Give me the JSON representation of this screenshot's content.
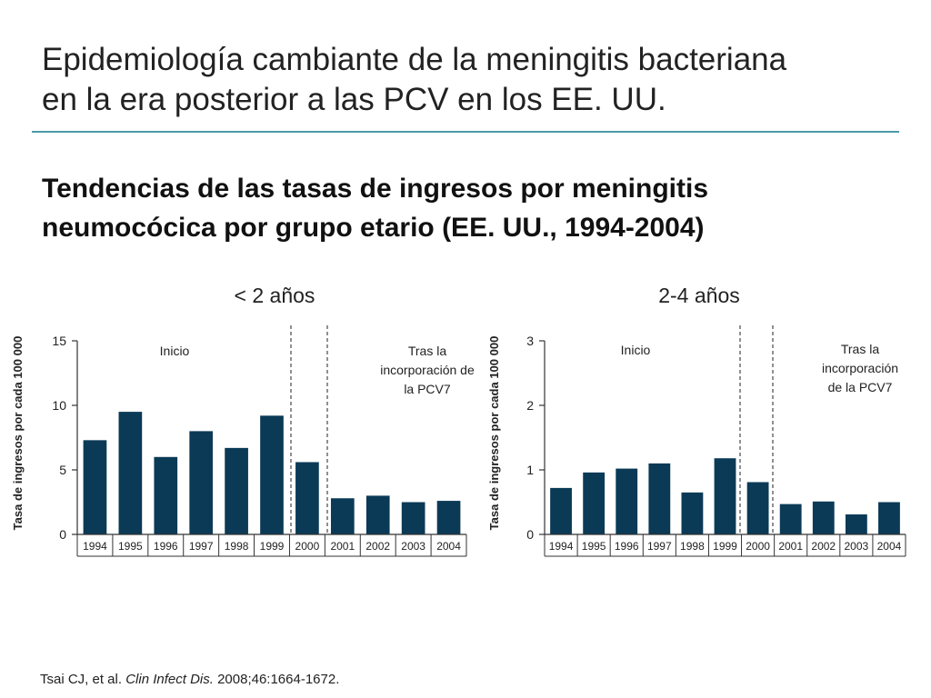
{
  "title": {
    "line1": "Epidemiología cambiante de la meningitis bacteriana",
    "line2": "en la era posterior a las PCV en los EE. UU."
  },
  "subtitle": {
    "line1": "Tendencias de las tasas de ingresos por meningitis",
    "line2": "neumocócica por grupo etario (EE. UU., 1994-2004)"
  },
  "colors": {
    "bar": "#0b3a57",
    "rule": "#4a9aa8",
    "axis": "#333333"
  },
  "chart_data": [
    {
      "type": "bar",
      "title": "< 2 años",
      "xlabel": "",
      "ylabel": "Tasa de ingresos por cada 100 000",
      "categories": [
        "1994",
        "1995",
        "1996",
        "1997",
        "1998",
        "1999",
        "2000",
        "2001",
        "2002",
        "2003",
        "2004"
      ],
      "values": [
        7.3,
        9.5,
        6.0,
        8.0,
        6.7,
        9.2,
        5.6,
        2.8,
        3.0,
        2.5,
        2.6
      ],
      "ylim": [
        0,
        15
      ],
      "yticks": [
        "0",
        "5",
        "10",
        "15"
      ],
      "ytick_values": [
        0,
        5,
        10,
        15
      ],
      "annotations": {
        "baseline": "Inicio",
        "post_l1": "Tras la",
        "post_l2": "incorporación de",
        "post_l3": "la PCV7"
      }
    },
    {
      "type": "bar",
      "title": "2-4 años",
      "xlabel": "",
      "ylabel": "Tasa de ingresos por cada 100 000",
      "categories": [
        "1994",
        "1995",
        "1996",
        "1997",
        "1998",
        "1999",
        "2000",
        "2001",
        "2002",
        "2003",
        "2004"
      ],
      "values": [
        0.72,
        0.96,
        1.02,
        1.1,
        0.65,
        1.18,
        0.81,
        0.47,
        0.51,
        0.31,
        0.5
      ],
      "ylim": [
        0,
        3
      ],
      "yticks": [
        "0",
        "1",
        "2",
        "3"
      ],
      "ytick_values": [
        0,
        1,
        2,
        3
      ],
      "annotations": {
        "baseline": "Inicio",
        "post_l1": "Tras la",
        "post_l2": "incorporación",
        "post_l3": "de la PCV7"
      }
    }
  ],
  "citation": {
    "authors": "Tsai CJ, et al.",
    "journal": "Clin Infect Dis.",
    "ref": "2008;46:1664-1672."
  }
}
